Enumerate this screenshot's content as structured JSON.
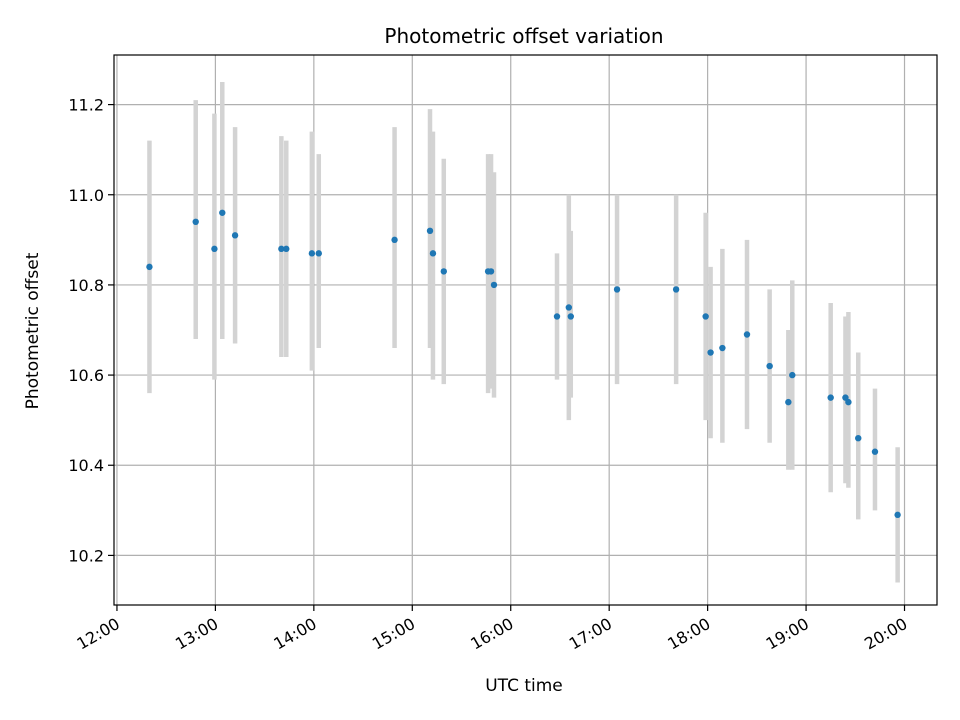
{
  "chart_data": {
    "type": "scatter",
    "title": "Photometric offset variation",
    "xlabel": "UTC time",
    "ylabel": "Photometric offset",
    "x_unit": "hour",
    "xlim": [
      11.97,
      20.33
    ],
    "ylim": [
      10.09,
      11.31
    ],
    "xticks": [
      12,
      13,
      14,
      15,
      16,
      17,
      18,
      19,
      20
    ],
    "xtick_labels": [
      "12:00",
      "13:00",
      "14:00",
      "15:00",
      "16:00",
      "17:00",
      "18:00",
      "19:00",
      "20:00"
    ],
    "yticks": [
      10.2,
      10.4,
      10.6,
      10.8,
      11.0,
      11.2
    ],
    "ytick_labels": [
      "10.2",
      "10.4",
      "10.6",
      "10.8",
      "11.0",
      "11.2"
    ],
    "grid": true,
    "marker_color": "#1f77b4",
    "errorbar_color": "#d3d3d3",
    "points": [
      {
        "x": 12.33,
        "y": 10.84,
        "lo": 10.56,
        "hi": 11.12
      },
      {
        "x": 12.8,
        "y": 10.94,
        "lo": 10.68,
        "hi": 11.21
      },
      {
        "x": 12.99,
        "y": 10.88,
        "lo": 10.59,
        "hi": 11.18
      },
      {
        "x": 13.07,
        "y": 10.96,
        "lo": 10.68,
        "hi": 11.25
      },
      {
        "x": 13.2,
        "y": 10.91,
        "lo": 10.67,
        "hi": 11.15
      },
      {
        "x": 13.67,
        "y": 10.88,
        "lo": 10.64,
        "hi": 11.13
      },
      {
        "x": 13.72,
        "y": 10.88,
        "lo": 10.64,
        "hi": 11.12
      },
      {
        "x": 13.98,
        "y": 10.87,
        "lo": 10.61,
        "hi": 11.14
      },
      {
        "x": 14.05,
        "y": 10.87,
        "lo": 10.66,
        "hi": 11.09
      },
      {
        "x": 14.82,
        "y": 10.9,
        "lo": 10.66,
        "hi": 11.15
      },
      {
        "x": 15.18,
        "y": 10.92,
        "lo": 10.66,
        "hi": 11.19
      },
      {
        "x": 15.21,
        "y": 10.87,
        "lo": 10.59,
        "hi": 11.14
      },
      {
        "x": 15.32,
        "y": 10.83,
        "lo": 10.58,
        "hi": 11.08
      },
      {
        "x": 15.77,
        "y": 10.83,
        "lo": 10.56,
        "hi": 11.09
      },
      {
        "x": 15.8,
        "y": 10.83,
        "lo": 10.57,
        "hi": 11.09
      },
      {
        "x": 15.83,
        "y": 10.8,
        "lo": 10.55,
        "hi": 11.05
      },
      {
        "x": 16.47,
        "y": 10.73,
        "lo": 10.59,
        "hi": 10.87
      },
      {
        "x": 16.59,
        "y": 10.75,
        "lo": 10.5,
        "hi": 11.0
      },
      {
        "x": 16.61,
        "y": 10.73,
        "lo": 10.55,
        "hi": 10.92
      },
      {
        "x": 17.08,
        "y": 10.79,
        "lo": 10.58,
        "hi": 11.0
      },
      {
        "x": 17.68,
        "y": 10.79,
        "lo": 10.58,
        "hi": 11.0
      },
      {
        "x": 17.98,
        "y": 10.73,
        "lo": 10.5,
        "hi": 10.96
      },
      {
        "x": 18.03,
        "y": 10.65,
        "lo": 10.46,
        "hi": 10.84
      },
      {
        "x": 18.15,
        "y": 10.66,
        "lo": 10.45,
        "hi": 10.88
      },
      {
        "x": 18.4,
        "y": 10.69,
        "lo": 10.48,
        "hi": 10.9
      },
      {
        "x": 18.63,
        "y": 10.62,
        "lo": 10.45,
        "hi": 10.79
      },
      {
        "x": 18.82,
        "y": 10.54,
        "lo": 10.39,
        "hi": 10.7
      },
      {
        "x": 18.86,
        "y": 10.6,
        "lo": 10.39,
        "hi": 10.81
      },
      {
        "x": 19.25,
        "y": 10.55,
        "lo": 10.34,
        "hi": 10.76
      },
      {
        "x": 19.4,
        "y": 10.55,
        "lo": 10.36,
        "hi": 10.73
      },
      {
        "x": 19.43,
        "y": 10.54,
        "lo": 10.35,
        "hi": 10.74
      },
      {
        "x": 19.53,
        "y": 10.46,
        "lo": 10.28,
        "hi": 10.65
      },
      {
        "x": 19.7,
        "y": 10.43,
        "lo": 10.3,
        "hi": 10.57
      },
      {
        "x": 19.93,
        "y": 10.29,
        "lo": 10.14,
        "hi": 10.44
      }
    ]
  }
}
